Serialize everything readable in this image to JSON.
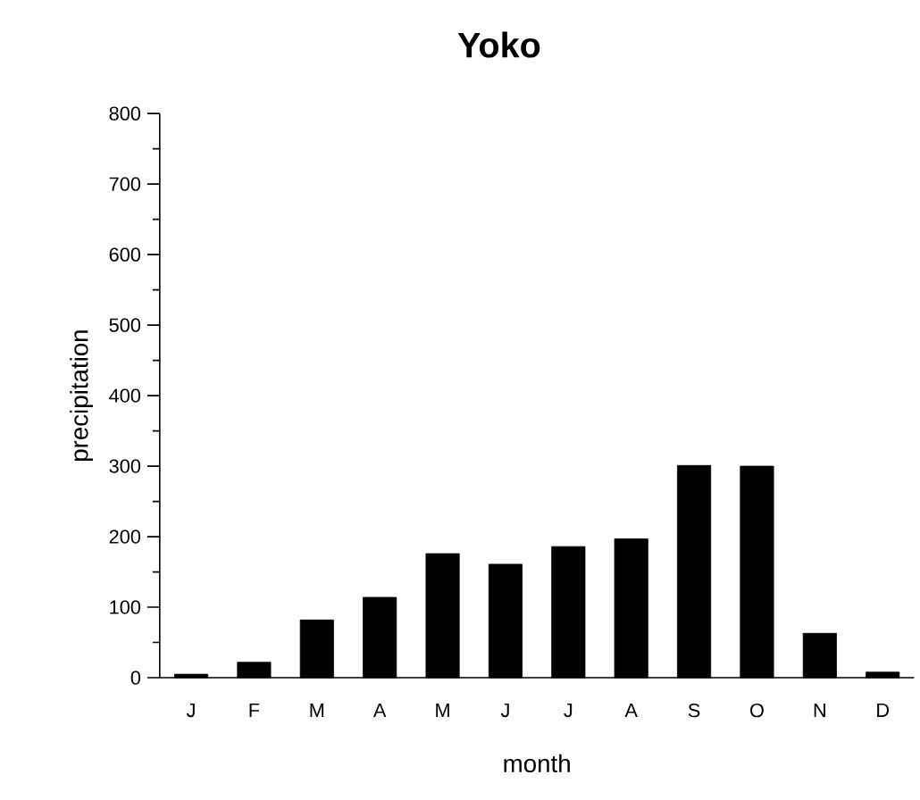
{
  "chart_data": {
    "type": "bar",
    "title": "Yoko",
    "xlabel": "month",
    "ylabel": "precipitation",
    "categories": [
      "J",
      "F",
      "M",
      "A",
      "M",
      "J",
      "J",
      "A",
      "S",
      "O",
      "N",
      "D"
    ],
    "values": [
      5,
      22,
      82,
      114,
      176,
      161,
      186,
      197,
      301,
      300,
      63,
      8
    ],
    "color": "#000000",
    "ylim": [
      0,
      800
    ],
    "yticks": [
      0,
      100,
      200,
      300,
      400,
      500,
      600,
      700,
      800
    ]
  }
}
